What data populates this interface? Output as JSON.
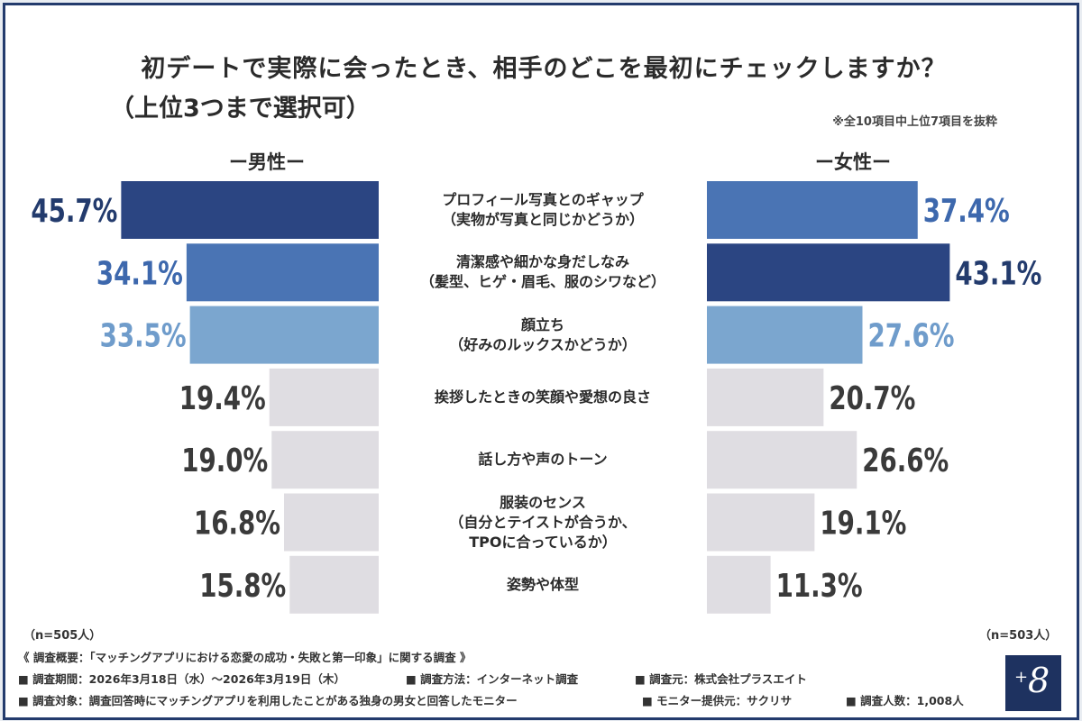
{
  "title_line1": "初デートで実際に会ったとき、相手のどこを最初にチェックしますか？",
  "title_line2": "（上位3つまで選択可）",
  "note": "※全10項目中上位7項目を抜粋",
  "male_header": "ー男性ー",
  "female_header": "ー女性ー",
  "male_n": "（n=505人）",
  "female_n": "（n=503人）",
  "chart_data": {
    "type": "bar",
    "orientation": "horizontal-butterfly",
    "categories": [
      [
        "プロフィール写真とのギャップ",
        "（実物が写真と同じかどうか）"
      ],
      [
        "清潔感や細かな身だしなみ",
        "（髪型、ヒゲ・眉毛、服のシワなど）"
      ],
      [
        "顔立ち",
        "（好みのルックスかどうか）"
      ],
      [
        "挨拶したときの笑顔や愛想の良さ"
      ],
      [
        "話し方や声のトーン"
      ],
      [
        "服装のセンス",
        "（自分とテイストが合うか、",
        "TPOに合っているか）"
      ],
      [
        "姿勢や体型"
      ]
    ],
    "series": [
      {
        "name": "男性",
        "values": [
          45.7,
          34.1,
          33.5,
          19.4,
          19.0,
          16.8,
          15.8
        ],
        "labels": [
          "45.7%",
          "34.1%",
          "33.5%",
          "19.4%",
          "19.0%",
          "16.8%",
          "15.8%"
        ]
      },
      {
        "name": "女性",
        "values": [
          37.4,
          43.1,
          27.6,
          20.7,
          26.6,
          19.1,
          11.3
        ],
        "labels": [
          "37.4%",
          "43.1%",
          "27.6%",
          "20.7%",
          "26.6%",
          "19.1%",
          "11.3%"
        ]
      }
    ],
    "rank_colors": [
      "#2b4582",
      "#4a74b4",
      "#7ba6cf",
      "#dfdde2"
    ],
    "label_colors": [
      "#233b6d",
      "#3d68ad",
      "#6f9ccb",
      "#3a3a3a"
    ],
    "male_rank": [
      1,
      2,
      3,
      4,
      4,
      4,
      4
    ],
    "female_rank": [
      2,
      1,
      3,
      4,
      4,
      4,
      4
    ]
  },
  "footer": {
    "line1": "《 調査概要：「マッチングアプリにおける恋愛の成功・失敗と第一印象」に関する調査 》",
    "line2": [
      "■ 調査期間：2026年3月18日（水）～2026年3月19日（木）",
      "■ 調査方法：インターネット調査",
      "■ 調査元：株式会社プラスエイト"
    ],
    "line3": [
      "■ 調査対象：調査回答時にマッチングアプリを利用したことがある独身の男女と回答したモニター",
      "■ モニター提供元：サクリサ",
      "■ 調査人数：1,008人"
    ]
  },
  "logo": {
    "plus": "+",
    "eight": "8"
  }
}
